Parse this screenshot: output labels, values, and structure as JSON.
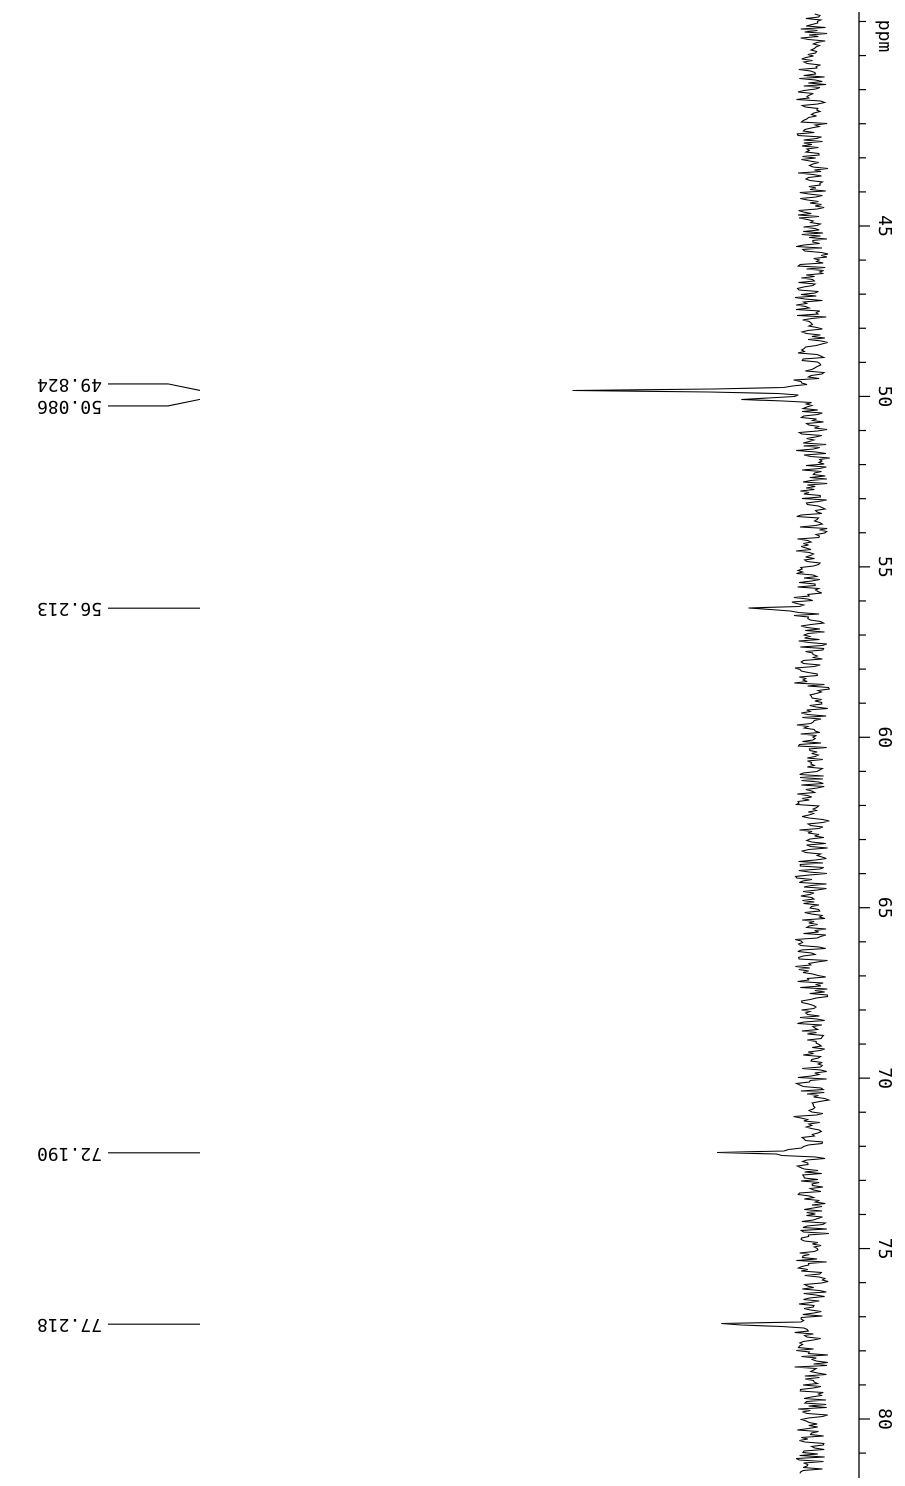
{
  "chart_data": {
    "type": "line",
    "x_axis": {
      "unit_label": "ppm",
      "range": [
        38.8,
        82.2
      ],
      "ticks": [
        45,
        50,
        55,
        60,
        65,
        70,
        75,
        80
      ],
      "tick_labels": [
        "45",
        "50",
        "55",
        "60",
        "65",
        "70",
        "75",
        "80"
      ],
      "direction": "ascending-downward"
    },
    "peaks": [
      {
        "ppm": 49.824,
        "label": "49.824",
        "intensity": 0.82
      },
      {
        "ppm": 50.086,
        "label": "50.086",
        "intensity": 0.23
      },
      {
        "ppm": 56.213,
        "label": "56.213",
        "intensity": 0.24
      },
      {
        "ppm": 72.19,
        "label": "72.190",
        "intensity": 0.32
      },
      {
        "ppm": 77.218,
        "label": "77.218",
        "intensity": 0.38
      }
    ],
    "baseline_noise": 0.05,
    "grid": false,
    "legend": "none"
  }
}
